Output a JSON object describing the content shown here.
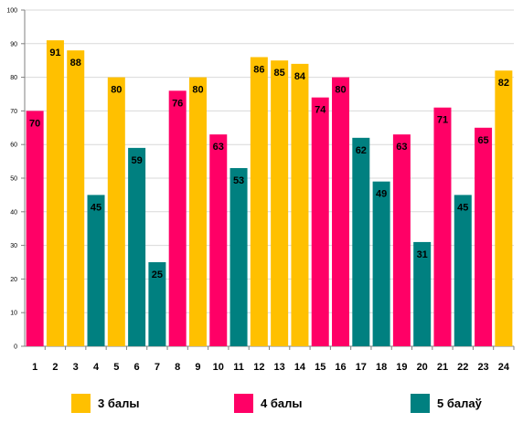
{
  "chart_data": {
    "type": "bar",
    "categories": [
      "1",
      "2",
      "3",
      "4",
      "5",
      "6",
      "7",
      "8",
      "9",
      "10",
      "11",
      "12",
      "13",
      "14",
      "15",
      "16",
      "17",
      "18",
      "19",
      "20",
      "21",
      "22",
      "23",
      "24"
    ],
    "values": [
      70,
      91,
      88,
      45,
      80,
      59,
      25,
      76,
      80,
      63,
      53,
      86,
      85,
      84,
      74,
      80,
      62,
      49,
      63,
      31,
      71,
      45,
      65,
      82
    ],
    "grade_index": [
      1,
      0,
      0,
      2,
      0,
      2,
      2,
      1,
      0,
      1,
      2,
      0,
      0,
      0,
      1,
      1,
      2,
      2,
      1,
      2,
      1,
      2,
      1,
      0
    ],
    "y_ticks": [
      "0",
      "10",
      "20",
      "30",
      "40",
      "50",
      "60",
      "70",
      "80",
      "90",
      "100"
    ],
    "ylim": [
      0,
      100
    ],
    "grid": true,
    "legend_position": "bottom",
    "series": [
      {
        "name": "3 балы",
        "color": "#FFC000"
      },
      {
        "name": "4 балы",
        "color": "#FF0066"
      },
      {
        "name": "5 балаў",
        "color": "#008080"
      }
    ]
  }
}
